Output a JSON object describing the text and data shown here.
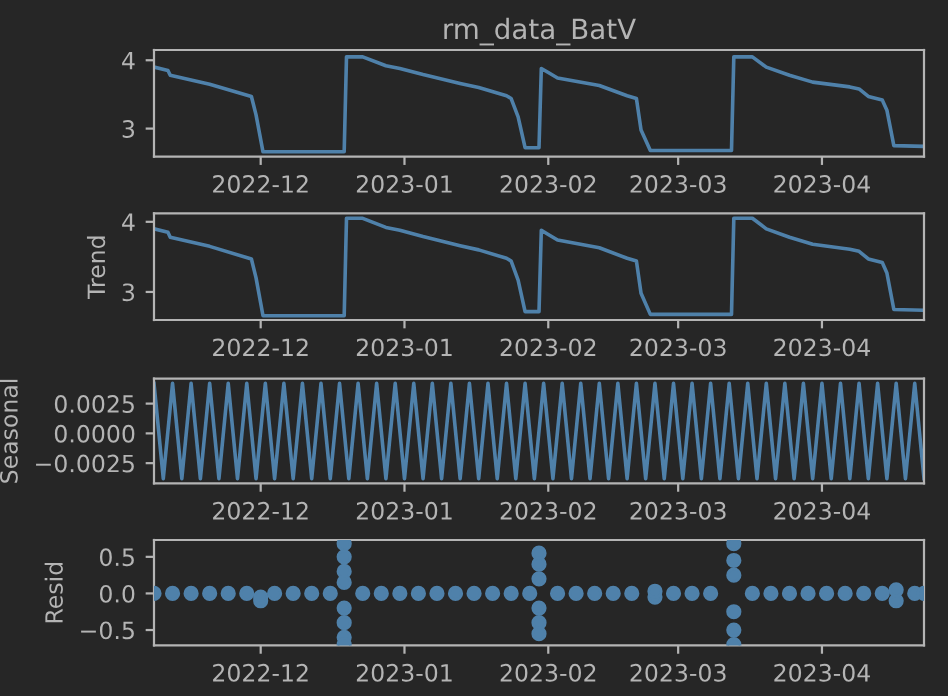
{
  "chart_data": [
    {
      "type": "line",
      "title": "rm_data_BatV",
      "color": "#4f81aa",
      "x": [
        "2022-11-08",
        "2022-11-11",
        "2022-11-11T12:00",
        "2022-11-20",
        "2022-11-29",
        "2022-11-30",
        "2022-12-01T12:00",
        "2022-12-19",
        "2022-12-19T12:00",
        "2022-12-23",
        "2022-12-28",
        "2022-12-31",
        "2023-01-05",
        "2023-01-13",
        "2023-01-17",
        "2023-01-23",
        "2023-01-24",
        "2023-01-25T12:00",
        "2023-01-27",
        "2023-01-30",
        "2023-01-30T12:00",
        "2023-02-01",
        "2023-02-03",
        "2023-02-12",
        "2023-02-18",
        "2023-02-20",
        "2023-02-21",
        "2023-02-23",
        "2023-03-12T12:00",
        "2023-03-13",
        "2023-03-17",
        "2023-03-20",
        "2023-03-25",
        "2023-03-30",
        "2023-04-07",
        "2023-04-09",
        "2023-04-11",
        "2023-04-14",
        "2023-04-15",
        "2023-04-16T12:00",
        "2023-04-23"
      ],
      "values": [
        3.9,
        3.85,
        3.78,
        3.65,
        3.47,
        3.2,
        2.66,
        2.66,
        4.05,
        4.05,
        3.92,
        3.88,
        3.79,
        3.66,
        3.6,
        3.48,
        3.44,
        3.17,
        2.72,
        2.72,
        3.88,
        3.82,
        3.74,
        3.63,
        3.48,
        3.44,
        2.98,
        2.68,
        2.68,
        4.05,
        4.05,
        3.9,
        3.78,
        3.68,
        3.61,
        3.58,
        3.47,
        3.42,
        3.27,
        2.75,
        2.74
      ],
      "xlim": [
        "2022-11-08",
        "2023-04-23"
      ],
      "xticks": [
        {
          "value": "2022-12-01",
          "label": "2022-12"
        },
        {
          "value": "2023-01-01",
          "label": "2023-01"
        },
        {
          "value": "2023-02-01",
          "label": "2023-02"
        },
        {
          "value": "2023-03-01",
          "label": "2023-03"
        },
        {
          "value": "2023-04-01",
          "label": "2023-04"
        }
      ],
      "ylim": [
        2.59,
        4.15
      ],
      "yticks": [
        3,
        4
      ]
    },
    {
      "type": "line",
      "ylabel": "Trend",
      "color": "#4f81aa",
      "x": [
        "2022-11-08",
        "2022-11-11",
        "2022-11-11T12:00",
        "2022-11-20",
        "2022-11-29",
        "2022-11-30",
        "2022-12-01T12:00",
        "2022-12-19",
        "2022-12-19T12:00",
        "2022-12-23",
        "2022-12-28",
        "2022-12-31",
        "2023-01-05",
        "2023-01-13",
        "2023-01-17",
        "2023-01-23",
        "2023-01-24",
        "2023-01-25T12:00",
        "2023-01-27",
        "2023-01-30",
        "2023-01-30T12:00",
        "2023-02-01",
        "2023-02-03",
        "2023-02-12",
        "2023-02-18",
        "2023-02-20",
        "2023-02-21",
        "2023-02-23",
        "2023-03-12T12:00",
        "2023-03-13",
        "2023-03-17",
        "2023-03-20",
        "2023-03-25",
        "2023-03-30",
        "2023-04-07",
        "2023-04-09",
        "2023-04-11",
        "2023-04-14",
        "2023-04-15",
        "2023-04-16T12:00",
        "2023-04-23"
      ],
      "values": [
        3.9,
        3.85,
        3.78,
        3.65,
        3.47,
        3.2,
        2.66,
        2.66,
        4.05,
        4.05,
        3.92,
        3.88,
        3.79,
        3.66,
        3.6,
        3.48,
        3.44,
        3.17,
        2.72,
        2.72,
        3.88,
        3.82,
        3.74,
        3.63,
        3.48,
        3.44,
        2.98,
        2.68,
        2.68,
        4.05,
        4.05,
        3.9,
        3.78,
        3.68,
        3.61,
        3.58,
        3.47,
        3.42,
        3.27,
        2.75,
        2.74
      ],
      "xlim": [
        "2022-11-08",
        "2023-04-23"
      ],
      "xticks": [
        {
          "value": "2022-12-01",
          "label": "2022-12"
        },
        {
          "value": "2023-01-01",
          "label": "2023-01"
        },
        {
          "value": "2023-02-01",
          "label": "2023-02"
        },
        {
          "value": "2023-03-01",
          "label": "2023-03"
        },
        {
          "value": "2023-04-01",
          "label": "2023-04"
        }
      ],
      "ylim": [
        2.6,
        4.12
      ],
      "yticks": [
        3,
        4
      ]
    },
    {
      "type": "line",
      "ylabel": "Seasonal",
      "color": "#4f81aa",
      "x": [
        "2022-11-08",
        "2022-11-10",
        "2022-11-12",
        "2022-11-14",
        "2022-11-16",
        "2022-11-18",
        "2022-11-20",
        "2022-11-22",
        "2022-11-24",
        "2022-11-26",
        "2022-11-28",
        "2022-11-30",
        "2022-12-02",
        "2022-12-04",
        "2022-12-06",
        "2022-12-08",
        "2022-12-10",
        "2022-12-12",
        "2022-12-14",
        "2022-12-16",
        "2022-12-18",
        "2022-12-20",
        "2022-12-22",
        "2022-12-24",
        "2022-12-26",
        "2022-12-28",
        "2022-12-30",
        "2023-01-01",
        "2023-01-03",
        "2023-01-05",
        "2023-01-07",
        "2023-01-09",
        "2023-01-11",
        "2023-01-13",
        "2023-01-15",
        "2023-01-17",
        "2023-01-19",
        "2023-01-21",
        "2023-01-23",
        "2023-01-25",
        "2023-01-27",
        "2023-01-29",
        "2023-01-31",
        "2023-02-02",
        "2023-02-04",
        "2023-02-06",
        "2023-02-08",
        "2023-02-10",
        "2023-02-12",
        "2023-02-14",
        "2023-02-16",
        "2023-02-18",
        "2023-02-20",
        "2023-02-22",
        "2023-02-24",
        "2023-02-26",
        "2023-02-28",
        "2023-03-02",
        "2023-03-04",
        "2023-03-06",
        "2023-03-08",
        "2023-03-10",
        "2023-03-12",
        "2023-03-14",
        "2023-03-16",
        "2023-03-18",
        "2023-03-20",
        "2023-03-22",
        "2023-03-24",
        "2023-03-26",
        "2023-03-28",
        "2023-03-30",
        "2023-04-01",
        "2023-04-03",
        "2023-04-05",
        "2023-04-07",
        "2023-04-09",
        "2023-04-11",
        "2023-04-13",
        "2023-04-15",
        "2023-04-17",
        "2023-04-19",
        "2023-04-21",
        "2023-04-23"
      ],
      "values": [
        0.0042,
        -0.0038,
        0.0042,
        -0.0038,
        0.0042,
        -0.0038,
        0.0042,
        -0.0038,
        0.0042,
        -0.0038,
        0.0042,
        -0.0038,
        0.0042,
        -0.0038,
        0.0042,
        -0.0038,
        0.0042,
        -0.0038,
        0.0042,
        -0.0038,
        0.0042,
        -0.0038,
        0.0042,
        -0.0038,
        0.0042,
        -0.0038,
        0.0042,
        -0.0038,
        0.0042,
        -0.0038,
        0.0042,
        -0.0038,
        0.0042,
        -0.0038,
        0.0042,
        -0.0038,
        0.0042,
        -0.0038,
        0.0042,
        -0.0038,
        0.0042,
        -0.0038,
        0.0042,
        -0.0038,
        0.0042,
        -0.0038,
        0.0042,
        -0.0038,
        0.0042,
        -0.0038,
        0.0042,
        -0.0038,
        0.0042,
        -0.0038,
        0.0042,
        -0.0038,
        0.0042,
        -0.0038,
        0.0042,
        -0.0038,
        0.0042,
        -0.0038,
        0.0042,
        -0.0038,
        0.0042,
        -0.0038,
        0.0042,
        -0.0038,
        0.0042,
        -0.0038,
        0.0042,
        -0.0038,
        0.0042,
        -0.0038,
        0.0042,
        -0.0038,
        0.0042,
        -0.0038,
        0.0042,
        -0.0038,
        0.0042,
        -0.0038,
        0.0042,
        -0.0038
      ],
      "xlim": [
        "2022-11-08",
        "2023-04-23"
      ],
      "xticks": [
        {
          "value": "2022-12-01",
          "label": "2022-12"
        },
        {
          "value": "2023-01-01",
          "label": "2023-01"
        },
        {
          "value": "2023-02-01",
          "label": "2023-02"
        },
        {
          "value": "2023-03-01",
          "label": "2023-03"
        },
        {
          "value": "2023-04-01",
          "label": "2023-04"
        }
      ],
      "ylim": [
        -0.0042,
        0.0046
      ],
      "yticks": [
        {
          "value": -0.0025,
          "label": "−0.0025"
        },
        {
          "value": 0,
          "label": "0.0000"
        },
        {
          "value": 0.0025,
          "label": "0.0025"
        }
      ]
    },
    {
      "type": "scatter",
      "ylabel": "Resid",
      "color": "#4f81aa",
      "marker": "circle",
      "x": [
        "2022-11-08",
        "2022-11-12",
        "2022-11-16",
        "2022-11-20",
        "2022-11-24",
        "2022-11-28",
        "2022-12-01",
        "2022-12-01",
        "2022-12-04",
        "2022-12-08",
        "2022-12-12",
        "2022-12-16",
        "2022-12-19",
        "2022-12-19",
        "2022-12-19",
        "2022-12-19",
        "2022-12-19",
        "2022-12-19",
        "2022-12-19",
        "2022-12-19",
        "2022-12-23",
        "2022-12-27",
        "2022-12-31",
        "2023-01-04",
        "2023-01-08",
        "2023-01-12",
        "2023-01-16",
        "2023-01-20",
        "2023-01-24",
        "2023-01-28",
        "2023-01-30",
        "2023-01-30",
        "2023-01-30",
        "2023-01-30",
        "2023-01-30",
        "2023-01-30",
        "2023-02-03",
        "2023-02-07",
        "2023-02-11",
        "2023-02-15",
        "2023-02-19",
        "2023-02-24",
        "2023-02-24",
        "2023-02-28",
        "2023-03-04",
        "2023-03-08",
        "2023-03-13",
        "2023-03-13",
        "2023-03-13",
        "2023-03-13",
        "2023-03-13",
        "2023-03-13",
        "2023-03-17",
        "2023-03-21",
        "2023-03-25",
        "2023-03-29",
        "2023-04-02",
        "2023-04-06",
        "2023-04-10",
        "2023-04-14",
        "2023-04-17",
        "2023-04-17",
        "2023-04-21",
        "2023-04-23"
      ],
      "values": [
        0,
        0,
        0,
        0,
        0,
        0,
        -0.1,
        -0.05,
        0,
        0,
        0,
        0,
        0.68,
        0.5,
        0.3,
        0.15,
        -0.2,
        -0.4,
        -0.6,
        -0.7,
        0,
        0,
        0,
        0,
        0,
        0,
        0,
        0,
        0,
        0,
        0.55,
        0.4,
        0.2,
        -0.2,
        -0.4,
        -0.55,
        0,
        0,
        0,
        0,
        0,
        -0.05,
        0.03,
        0,
        0,
        0,
        0.68,
        0.45,
        0.25,
        -0.25,
        -0.5,
        -0.7,
        0,
        0,
        0,
        0,
        0,
        0,
        0,
        0,
        -0.1,
        0.05,
        0,
        0
      ],
      "xlim": [
        "2022-11-08",
        "2023-04-23"
      ],
      "xticks": [
        {
          "value": "2022-12-01",
          "label": "2022-12"
        },
        {
          "value": "2023-01-01",
          "label": "2023-01"
        },
        {
          "value": "2023-02-01",
          "label": "2023-02"
        },
        {
          "value": "2023-03-01",
          "label": "2023-03"
        },
        {
          "value": "2023-04-01",
          "label": "2023-04"
        }
      ],
      "ylim": [
        -0.71,
        0.73
      ],
      "yticks": [
        {
          "value": -0.5,
          "label": "−0.5"
        },
        {
          "value": 0,
          "label": "0.0"
        },
        {
          "value": 0.5,
          "label": "0.5"
        }
      ]
    }
  ]
}
